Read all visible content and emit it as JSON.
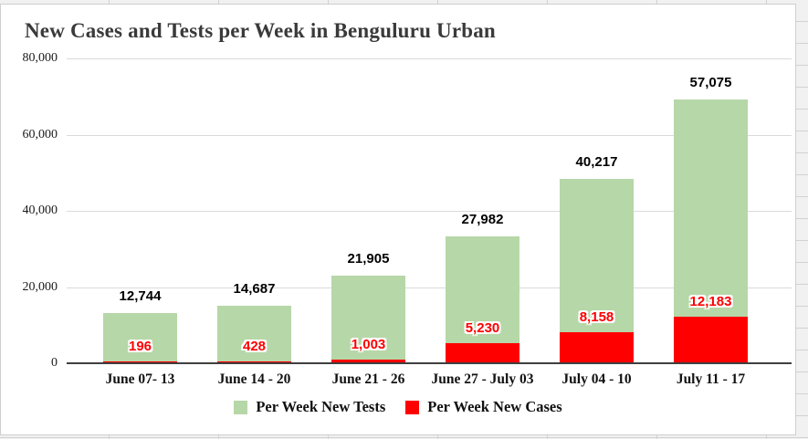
{
  "chart_data": {
    "type": "bar",
    "stacked": true,
    "title": "New Cases and Tests per Week in Benguluru Urban",
    "categories": [
      "June 07- 13",
      "June 14 - 20",
      "June 21 - 26",
      "June 27 - July 03",
      "July 04 - 10",
      "July 11 - 17"
    ],
    "series": [
      {
        "name": "Per Week New Cases",
        "color": "#ff0000",
        "values": [
          196,
          428,
          1003,
          5230,
          8158,
          12183
        ],
        "labels": [
          "196",
          "428",
          "1,003",
          "5,230",
          "8,158",
          "12,183"
        ]
      },
      {
        "name": "Per Week New Tests",
        "color": "#b6d7a8",
        "values": [
          12744,
          14687,
          21905,
          27982,
          40217,
          57075
        ],
        "labels": [
          "12,744",
          "14,687",
          "21,905",
          "27,982",
          "40,217",
          "57,075"
        ]
      }
    ],
    "ylim": [
      0,
      80000
    ],
    "ytick_values": [
      0,
      20000,
      40000,
      60000,
      80000
    ],
    "ytick_labels": [
      "0",
      "20,000",
      "40,000",
      "60,000",
      "80,000"
    ],
    "grid": true,
    "legend_position": "bottom",
    "label_colors": {
      "total": "#000000",
      "cases": "#ff0000"
    },
    "axis_colors": {
      "gridline": "#dadada",
      "baseline": "#3f3f3f"
    }
  }
}
